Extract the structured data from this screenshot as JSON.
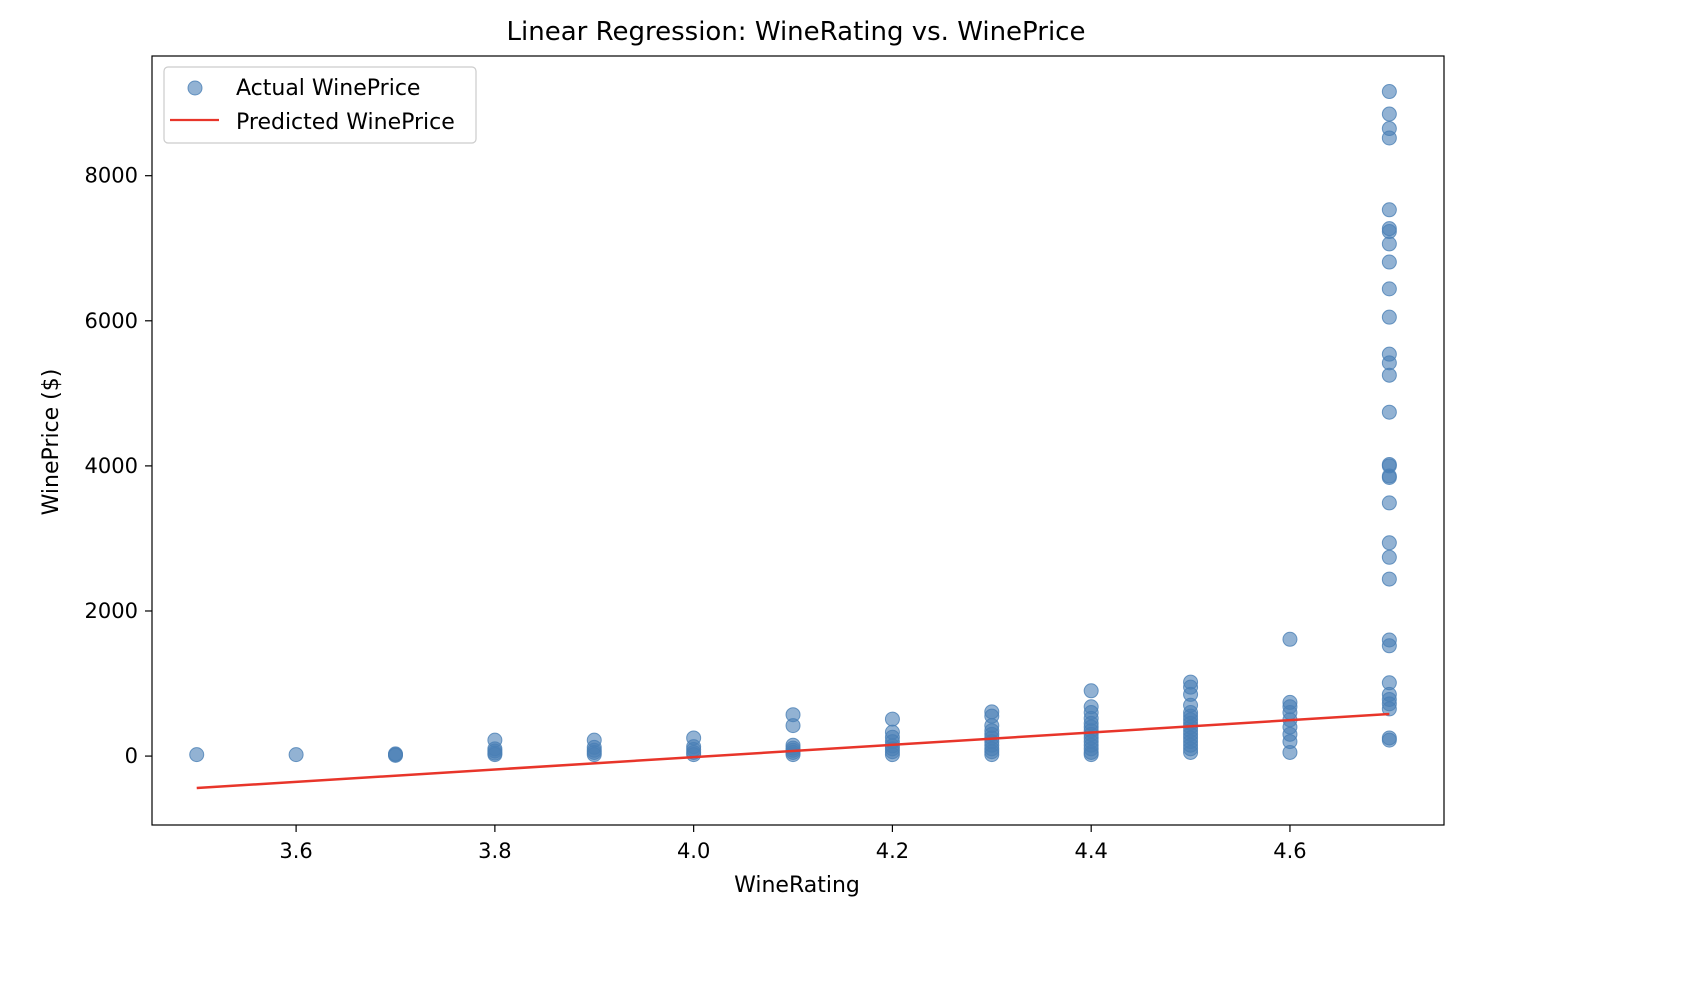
{
  "chart_data": {
    "type": "scatter",
    "title": "Linear Regression: WineRating vs. WinePrice",
    "xlabel": "WineRating",
    "ylabel": "WinePrice ($)",
    "xlim": [
      3.455,
      4.755
    ],
    "ylim": [
      -950,
      9650
    ],
    "xticks": [
      3.6,
      3.8,
      4.0,
      4.2,
      4.4,
      4.6
    ],
    "xtick_labels": [
      "3.6",
      "3.8",
      "4.0",
      "4.2",
      "4.4",
      "4.6"
    ],
    "yticks": [
      0,
      2000,
      4000,
      6000,
      8000
    ],
    "ytick_labels": [
      "0",
      "2000",
      "4000",
      "6000",
      "8000"
    ],
    "grid": false,
    "legend_position": "top-left",
    "colors": {
      "points": "#4a7fb5",
      "line": "#e8352a"
    },
    "series": [
      {
        "name": "Actual WinePrice",
        "kind": "scatter",
        "points": [
          [
            3.5,
            20
          ],
          [
            3.6,
            20
          ],
          [
            3.7,
            10
          ],
          [
            3.7,
            20
          ],
          [
            3.7,
            30
          ],
          [
            3.8,
            20
          ],
          [
            3.8,
            40
          ],
          [
            3.8,
            70
          ],
          [
            3.8,
            100
          ],
          [
            3.8,
            220
          ],
          [
            3.9,
            20
          ],
          [
            3.9,
            50
          ],
          [
            3.9,
            80
          ],
          [
            3.9,
            120
          ],
          [
            3.9,
            220
          ],
          [
            4.0,
            20
          ],
          [
            4.0,
            50
          ],
          [
            4.0,
            90
          ],
          [
            4.0,
            130
          ],
          [
            4.0,
            250
          ],
          [
            4.1,
            20
          ],
          [
            4.1,
            50
          ],
          [
            4.1,
            80
          ],
          [
            4.1,
            110
          ],
          [
            4.1,
            150
          ],
          [
            4.1,
            420
          ],
          [
            4.1,
            570
          ],
          [
            4.2,
            20
          ],
          [
            4.2,
            60
          ],
          [
            4.2,
            100
          ],
          [
            4.2,
            140
          ],
          [
            4.2,
            200
          ],
          [
            4.2,
            260
          ],
          [
            4.2,
            330
          ],
          [
            4.2,
            510
          ],
          [
            4.3,
            20
          ],
          [
            4.3,
            60
          ],
          [
            4.3,
            100
          ],
          [
            4.3,
            150
          ],
          [
            4.3,
            200
          ],
          [
            4.3,
            250
          ],
          [
            4.3,
            300
          ],
          [
            4.3,
            350
          ],
          [
            4.3,
            420
          ],
          [
            4.3,
            550
          ],
          [
            4.3,
            610
          ],
          [
            4.4,
            20
          ],
          [
            4.4,
            50
          ],
          [
            4.4,
            100
          ],
          [
            4.4,
            150
          ],
          [
            4.4,
            200
          ],
          [
            4.4,
            250
          ],
          [
            4.4,
            300
          ],
          [
            4.4,
            350
          ],
          [
            4.4,
            400
          ],
          [
            4.4,
            450
          ],
          [
            4.4,
            520
          ],
          [
            4.4,
            600
          ],
          [
            4.4,
            680
          ],
          [
            4.4,
            900
          ],
          [
            4.5,
            50
          ],
          [
            4.5,
            100
          ],
          [
            4.5,
            150
          ],
          [
            4.5,
            200
          ],
          [
            4.5,
            250
          ],
          [
            4.5,
            300
          ],
          [
            4.5,
            350
          ],
          [
            4.5,
            400
          ],
          [
            4.5,
            450
          ],
          [
            4.5,
            500
          ],
          [
            4.5,
            550
          ],
          [
            4.5,
            600
          ],
          [
            4.5,
            700
          ],
          [
            4.5,
            850
          ],
          [
            4.5,
            950
          ],
          [
            4.5,
            1020
          ],
          [
            4.6,
            50
          ],
          [
            4.6,
            200
          ],
          [
            4.6,
            300
          ],
          [
            4.6,
            400
          ],
          [
            4.6,
            500
          ],
          [
            4.6,
            600
          ],
          [
            4.6,
            680
          ],
          [
            4.6,
            740
          ],
          [
            4.6,
            1610
          ],
          [
            4.7,
            220
          ],
          [
            4.7,
            250
          ],
          [
            4.7,
            650
          ],
          [
            4.7,
            720
          ],
          [
            4.7,
            780
          ],
          [
            4.7,
            850
          ],
          [
            4.7,
            1010
          ],
          [
            4.7,
            1520
          ],
          [
            4.7,
            1600
          ],
          [
            4.7,
            2440
          ],
          [
            4.7,
            2740
          ],
          [
            4.7,
            2940
          ],
          [
            4.7,
            3490
          ],
          [
            4.7,
            3840
          ],
          [
            4.7,
            3860
          ],
          [
            4.7,
            4000
          ],
          [
            4.7,
            4020
          ],
          [
            4.7,
            4740
          ],
          [
            4.7,
            5250
          ],
          [
            4.7,
            5420
          ],
          [
            4.7,
            5540
          ],
          [
            4.7,
            6050
          ],
          [
            4.7,
            6440
          ],
          [
            4.7,
            6810
          ],
          [
            4.7,
            7060
          ],
          [
            4.7,
            7230
          ],
          [
            4.7,
            7270
          ],
          [
            4.7,
            7530
          ],
          [
            4.7,
            8520
          ],
          [
            4.7,
            8650
          ],
          [
            4.7,
            8850
          ],
          [
            4.7,
            9160
          ]
        ]
      },
      {
        "name": "Predicted WinePrice",
        "kind": "line",
        "x": [
          3.5,
          4.7
        ],
        "y": [
          -440,
          580
        ]
      }
    ]
  }
}
